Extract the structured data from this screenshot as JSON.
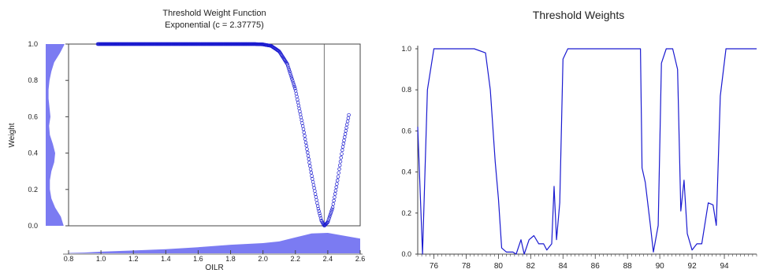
{
  "colors": {
    "curve": "#1a1ad0",
    "density": "#6464f0",
    "axis": "#444444",
    "refline": "#555555"
  },
  "chart_data": [
    {
      "type": "scatter",
      "title": "Threshold Weight Function",
      "subtitle": "Exponential (c = 2.37775)",
      "xlabel": "OILR",
      "ylabel": "Weight",
      "xlim": [
        0.8,
        2.6
      ],
      "ylim": [
        0.0,
        1.0
      ],
      "x_ticks": [
        "0.8",
        "1.0",
        "1.2",
        "1.4",
        "1.6",
        "1.8",
        "2.0",
        "2.2",
        "2.4",
        "2.6"
      ],
      "y_ticks": [
        "0.0",
        "0.2",
        "0.4",
        "0.6",
        "0.8",
        "1.0"
      ],
      "threshold_c": 2.37775,
      "x_range_observed": [
        0.98,
        2.53
      ],
      "grid": false,
      "marginal_densities": true,
      "points": [
        [
          0.98,
          1.0
        ],
        [
          1.2,
          1.0
        ],
        [
          1.5,
          1.0
        ],
        [
          1.8,
          1.0
        ],
        [
          1.95,
          1.0
        ],
        [
          2.0,
          0.998
        ],
        [
          2.05,
          0.99
        ],
        [
          2.1,
          0.96
        ],
        [
          2.15,
          0.89
        ],
        [
          2.2,
          0.75
        ],
        [
          2.25,
          0.53
        ],
        [
          2.3,
          0.28
        ],
        [
          2.34,
          0.1
        ],
        [
          2.36,
          0.03
        ],
        [
          2.378,
          0.0
        ],
        [
          2.4,
          0.02
        ],
        [
          2.43,
          0.1
        ],
        [
          2.46,
          0.25
        ],
        [
          2.49,
          0.42
        ],
        [
          2.53,
          0.61
        ]
      ],
      "x_density": [
        [
          0.8,
          0.02
        ],
        [
          0.9,
          0.04
        ],
        [
          1.0,
          0.08
        ],
        [
          1.2,
          0.14
        ],
        [
          1.4,
          0.2
        ],
        [
          1.6,
          0.3
        ],
        [
          1.8,
          0.42
        ],
        [
          2.0,
          0.5
        ],
        [
          2.1,
          0.58
        ],
        [
          2.2,
          0.78
        ],
        [
          2.3,
          0.97
        ],
        [
          2.4,
          1.0
        ],
        [
          2.5,
          0.86
        ],
        [
          2.6,
          0.72
        ]
      ],
      "y_density": [
        [
          0.0,
          0.95
        ],
        [
          0.05,
          0.8
        ],
        [
          0.1,
          0.5
        ],
        [
          0.15,
          0.3
        ],
        [
          0.2,
          0.22
        ],
        [
          0.25,
          0.22
        ],
        [
          0.3,
          0.3
        ],
        [
          0.35,
          0.45
        ],
        [
          0.4,
          0.5
        ],
        [
          0.45,
          0.38
        ],
        [
          0.5,
          0.22
        ],
        [
          0.55,
          0.18
        ],
        [
          0.6,
          0.25
        ],
        [
          0.65,
          0.2
        ],
        [
          0.7,
          0.15
        ],
        [
          0.75,
          0.15
        ],
        [
          0.8,
          0.2
        ],
        [
          0.85,
          0.3
        ],
        [
          0.9,
          0.45
        ],
        [
          0.95,
          0.75
        ],
        [
          1.0,
          1.0
        ]
      ]
    },
    {
      "type": "line",
      "title": "Threshold Weights",
      "xlabel": "",
      "ylabel": "",
      "xlim": [
        1975,
        1996
      ],
      "ylim": [
        0.0,
        1.0
      ],
      "x_ticks": [
        "76",
        "78",
        "80",
        "82",
        "84",
        "86",
        "88",
        "90",
        "92",
        "94"
      ],
      "y_ticks": [
        "0.0",
        "0.2",
        "0.4",
        "0.6",
        "0.8",
        "1.0"
      ],
      "grid": false,
      "series": [
        {
          "values": [
            [
              1975.0,
              0.62
            ],
            [
              1975.3,
              0.0
            ],
            [
              1975.6,
              0.8
            ],
            [
              1976.0,
              1.0
            ],
            [
              1977.0,
              1.0
            ],
            [
              1978.5,
              1.0
            ],
            [
              1979.2,
              0.98
            ],
            [
              1979.5,
              0.8
            ],
            [
              1979.8,
              0.45
            ],
            [
              1980.0,
              0.27
            ],
            [
              1980.2,
              0.03
            ],
            [
              1980.5,
              0.01
            ],
            [
              1980.9,
              0.01
            ],
            [
              1981.1,
              0.0
            ],
            [
              1981.4,
              0.07
            ],
            [
              1981.6,
              0.0
            ],
            [
              1981.9,
              0.07
            ],
            [
              1982.2,
              0.09
            ],
            [
              1982.5,
              0.05
            ],
            [
              1982.8,
              0.05
            ],
            [
              1983.0,
              0.02
            ],
            [
              1983.3,
              0.05
            ],
            [
              1983.45,
              0.33
            ],
            [
              1983.6,
              0.07
            ],
            [
              1983.8,
              0.25
            ],
            [
              1984.0,
              0.95
            ],
            [
              1984.3,
              1.0
            ],
            [
              1985.0,
              1.0
            ],
            [
              1987.0,
              1.0
            ],
            [
              1988.8,
              1.0
            ],
            [
              1988.9,
              0.42
            ],
            [
              1989.1,
              0.35
            ],
            [
              1989.4,
              0.15
            ],
            [
              1989.6,
              0.01
            ],
            [
              1989.9,
              0.14
            ],
            [
              1990.1,
              0.93
            ],
            [
              1990.4,
              1.0
            ],
            [
              1990.8,
              1.0
            ],
            [
              1991.1,
              0.9
            ],
            [
              1991.3,
              0.21
            ],
            [
              1991.5,
              0.36
            ],
            [
              1991.7,
              0.1
            ],
            [
              1992.0,
              0.02
            ],
            [
              1992.3,
              0.05
            ],
            [
              1992.6,
              0.05
            ],
            [
              1993.0,
              0.25
            ],
            [
              1993.3,
              0.24
            ],
            [
              1993.5,
              0.14
            ],
            [
              1993.75,
              0.77
            ],
            [
              1994.1,
              1.0
            ],
            [
              1995.0,
              1.0
            ],
            [
              1996.0,
              1.0
            ]
          ]
        }
      ]
    }
  ]
}
